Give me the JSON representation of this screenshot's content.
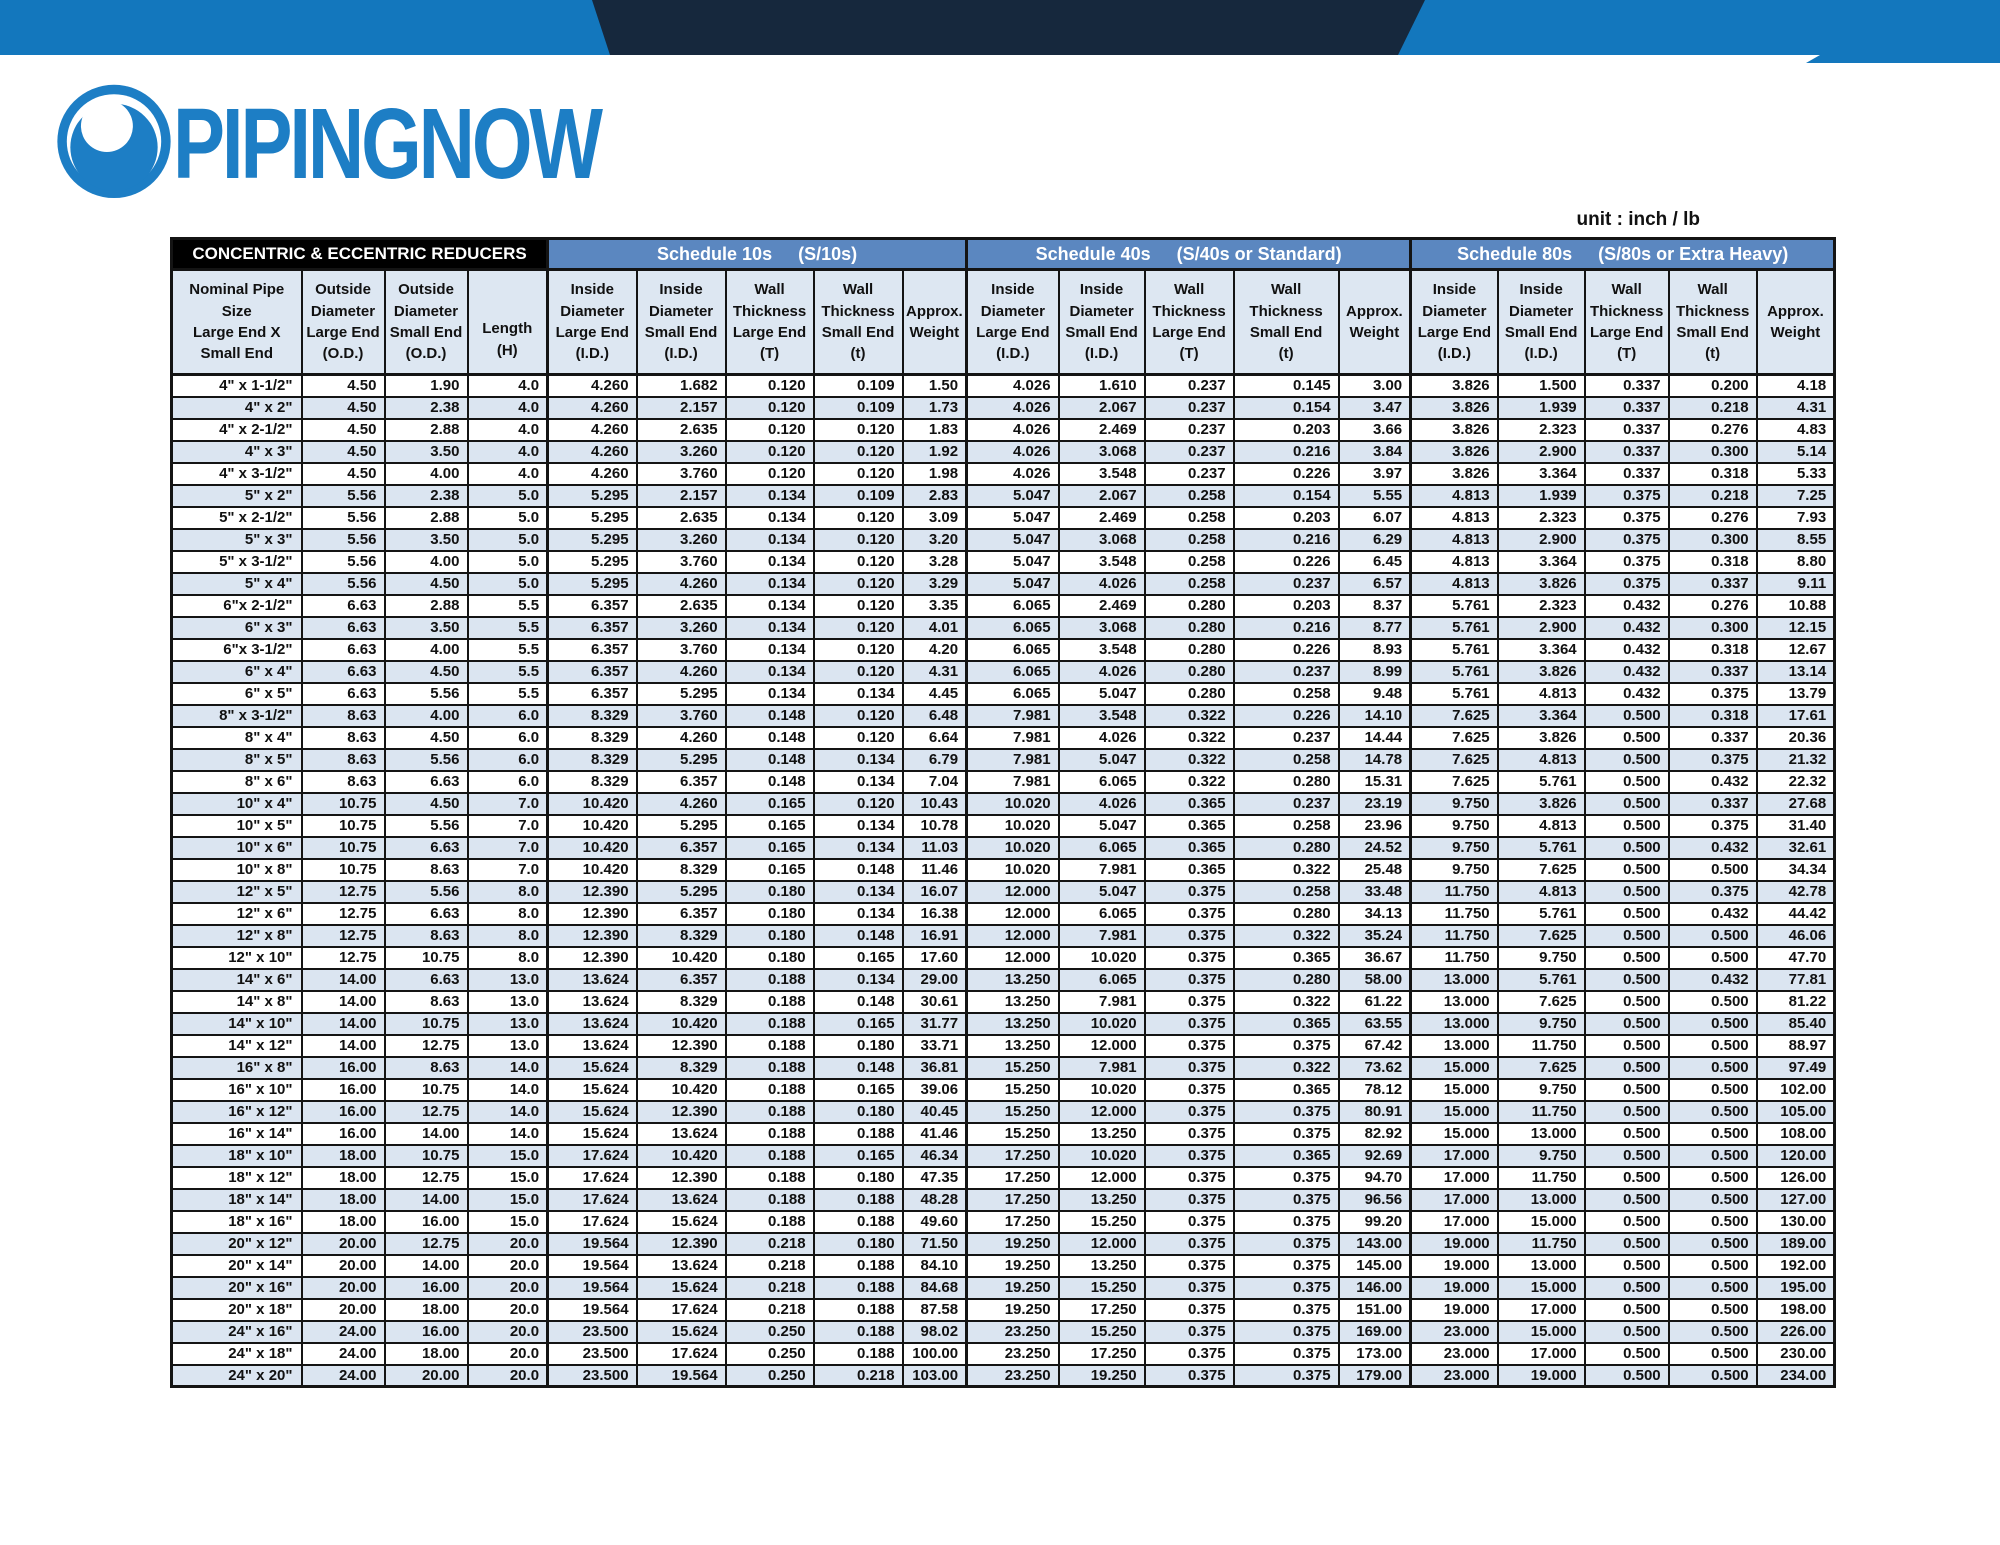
{
  "meta": {
    "unit_label": "unit : inch / lb"
  },
  "logo": {
    "text": "PIPINGNOW"
  },
  "colors": {
    "banner_blue": "#1377bd",
    "banner_navy": "#16283d",
    "logo_blue": "#1d7ec5",
    "schedule_bar_blue": "#5b87c0",
    "header_bg": "#dde7f2",
    "row_stripe": "#dbe5f1",
    "title_bg": "#000000",
    "border": "#141414"
  },
  "table": {
    "title": "CONCENTRIC & ECCENTRIC REDUCERS",
    "schedules": [
      {
        "label": "Schedule 10s",
        "sublabel": "(S/10s)"
      },
      {
        "label": "Schedule 40s",
        "sublabel": "(S/40s or Standard)"
      },
      {
        "label": "Schedule 80s",
        "sublabel": "(S/80s or Extra Heavy)"
      }
    ],
    "base_headers": [
      "Nominal Pipe\nSize\nLarge End X\nSmall End",
      "Outside\nDiameter\nLarge End\n(O.D.)",
      "Outside\nDiameter\nSmall End\n(O.D.)",
      "Length\n(H)"
    ],
    "schedule_headers": [
      "Inside\nDiameter\nLarge End\n(I.D.)",
      "Inside\nDiameter\nSmall End\n(I.D.)",
      "Wall\nThickness\nLarge End\n(T)",
      "Wall\nThickness\nSmall End\n(t)",
      "Approx.\nWeight"
    ],
    "rows": [
      [
        "4\" x 1-1/2\"",
        "4.50",
        "1.90",
        "4.0",
        "4.260",
        "1.682",
        "0.120",
        "0.109",
        "1.50",
        "4.026",
        "1.610",
        "0.237",
        "0.145",
        "3.00",
        "3.826",
        "1.500",
        "0.337",
        "0.200",
        "4.18"
      ],
      [
        "4\" x 2\"",
        "4.50",
        "2.38",
        "4.0",
        "4.260",
        "2.157",
        "0.120",
        "0.109",
        "1.73",
        "4.026",
        "2.067",
        "0.237",
        "0.154",
        "3.47",
        "3.826",
        "1.939",
        "0.337",
        "0.218",
        "4.31"
      ],
      [
        "4\" x 2-1/2\"",
        "4.50",
        "2.88",
        "4.0",
        "4.260",
        "2.635",
        "0.120",
        "0.120",
        "1.83",
        "4.026",
        "2.469",
        "0.237",
        "0.203",
        "3.66",
        "3.826",
        "2.323",
        "0.337",
        "0.276",
        "4.83"
      ],
      [
        "4\" x 3\"",
        "4.50",
        "3.50",
        "4.0",
        "4.260",
        "3.260",
        "0.120",
        "0.120",
        "1.92",
        "4.026",
        "3.068",
        "0.237",
        "0.216",
        "3.84",
        "3.826",
        "2.900",
        "0.337",
        "0.300",
        "5.14"
      ],
      [
        "4\" x 3-1/2\"",
        "4.50",
        "4.00",
        "4.0",
        "4.260",
        "3.760",
        "0.120",
        "0.120",
        "1.98",
        "4.026",
        "3.548",
        "0.237",
        "0.226",
        "3.97",
        "3.826",
        "3.364",
        "0.337",
        "0.318",
        "5.33"
      ],
      [
        "5\" x 2\"",
        "5.56",
        "2.38",
        "5.0",
        "5.295",
        "2.157",
        "0.134",
        "0.109",
        "2.83",
        "5.047",
        "2.067",
        "0.258",
        "0.154",
        "5.55",
        "4.813",
        "1.939",
        "0.375",
        "0.218",
        "7.25"
      ],
      [
        "5\" x 2-1/2\"",
        "5.56",
        "2.88",
        "5.0",
        "5.295",
        "2.635",
        "0.134",
        "0.120",
        "3.09",
        "5.047",
        "2.469",
        "0.258",
        "0.203",
        "6.07",
        "4.813",
        "2.323",
        "0.375",
        "0.276",
        "7.93"
      ],
      [
        "5\" x 3\"",
        "5.56",
        "3.50",
        "5.0",
        "5.295",
        "3.260",
        "0.134",
        "0.120",
        "3.20",
        "5.047",
        "3.068",
        "0.258",
        "0.216",
        "6.29",
        "4.813",
        "2.900",
        "0.375",
        "0.300",
        "8.55"
      ],
      [
        "5\" x 3-1/2\"",
        "5.56",
        "4.00",
        "5.0",
        "5.295",
        "3.760",
        "0.134",
        "0.120",
        "3.28",
        "5.047",
        "3.548",
        "0.258",
        "0.226",
        "6.45",
        "4.813",
        "3.364",
        "0.375",
        "0.318",
        "8.80"
      ],
      [
        "5\" x 4\"",
        "5.56",
        "4.50",
        "5.0",
        "5.295",
        "4.260",
        "0.134",
        "0.120",
        "3.29",
        "5.047",
        "4.026",
        "0.258",
        "0.237",
        "6.57",
        "4.813",
        "3.826",
        "0.375",
        "0.337",
        "9.11"
      ],
      [
        "6\"x 2-1/2\"",
        "6.63",
        "2.88",
        "5.5",
        "6.357",
        "2.635",
        "0.134",
        "0.120",
        "3.35",
        "6.065",
        "2.469",
        "0.280",
        "0.203",
        "8.37",
        "5.761",
        "2.323",
        "0.432",
        "0.276",
        "10.88"
      ],
      [
        "6\" x 3\"",
        "6.63",
        "3.50",
        "5.5",
        "6.357",
        "3.260",
        "0.134",
        "0.120",
        "4.01",
        "6.065",
        "3.068",
        "0.280",
        "0.216",
        "8.77",
        "5.761",
        "2.900",
        "0.432",
        "0.300",
        "12.15"
      ],
      [
        "6\"x 3-1/2\"",
        "6.63",
        "4.00",
        "5.5",
        "6.357",
        "3.760",
        "0.134",
        "0.120",
        "4.20",
        "6.065",
        "3.548",
        "0.280",
        "0.226",
        "8.93",
        "5.761",
        "3.364",
        "0.432",
        "0.318",
        "12.67"
      ],
      [
        "6\" x 4\"",
        "6.63",
        "4.50",
        "5.5",
        "6.357",
        "4.260",
        "0.134",
        "0.120",
        "4.31",
        "6.065",
        "4.026",
        "0.280",
        "0.237",
        "8.99",
        "5.761",
        "3.826",
        "0.432",
        "0.337",
        "13.14"
      ],
      [
        "6\" x 5\"",
        "6.63",
        "5.56",
        "5.5",
        "6.357",
        "5.295",
        "0.134",
        "0.134",
        "4.45",
        "6.065",
        "5.047",
        "0.280",
        "0.258",
        "9.48",
        "5.761",
        "4.813",
        "0.432",
        "0.375",
        "13.79"
      ],
      [
        "8\" x 3-1/2\"",
        "8.63",
        "4.00",
        "6.0",
        "8.329",
        "3.760",
        "0.148",
        "0.120",
        "6.48",
        "7.981",
        "3.548",
        "0.322",
        "0.226",
        "14.10",
        "7.625",
        "3.364",
        "0.500",
        "0.318",
        "17.61"
      ],
      [
        "8\" x 4\"",
        "8.63",
        "4.50",
        "6.0",
        "8.329",
        "4.260",
        "0.148",
        "0.120",
        "6.64",
        "7.981",
        "4.026",
        "0.322",
        "0.237",
        "14.44",
        "7.625",
        "3.826",
        "0.500",
        "0.337",
        "20.36"
      ],
      [
        "8\" x 5\"",
        "8.63",
        "5.56",
        "6.0",
        "8.329",
        "5.295",
        "0.148",
        "0.134",
        "6.79",
        "7.981",
        "5.047",
        "0.322",
        "0.258",
        "14.78",
        "7.625",
        "4.813",
        "0.500",
        "0.375",
        "21.32"
      ],
      [
        "8\" x 6\"",
        "8.63",
        "6.63",
        "6.0",
        "8.329",
        "6.357",
        "0.148",
        "0.134",
        "7.04",
        "7.981",
        "6.065",
        "0.322",
        "0.280",
        "15.31",
        "7.625",
        "5.761",
        "0.500",
        "0.432",
        "22.32"
      ],
      [
        "10\" x 4\"",
        "10.75",
        "4.50",
        "7.0",
        "10.420",
        "4.260",
        "0.165",
        "0.120",
        "10.43",
        "10.020",
        "4.026",
        "0.365",
        "0.237",
        "23.19",
        "9.750",
        "3.826",
        "0.500",
        "0.337",
        "27.68"
      ],
      [
        "10\" x 5\"",
        "10.75",
        "5.56",
        "7.0",
        "10.420",
        "5.295",
        "0.165",
        "0.134",
        "10.78",
        "10.020",
        "5.047",
        "0.365",
        "0.258",
        "23.96",
        "9.750",
        "4.813",
        "0.500",
        "0.375",
        "31.40"
      ],
      [
        "10\" x 6\"",
        "10.75",
        "6.63",
        "7.0",
        "10.420",
        "6.357",
        "0.165",
        "0.134",
        "11.03",
        "10.020",
        "6.065",
        "0.365",
        "0.280",
        "24.52",
        "9.750",
        "5.761",
        "0.500",
        "0.432",
        "32.61"
      ],
      [
        "10\" x 8\"",
        "10.75",
        "8.63",
        "7.0",
        "10.420",
        "8.329",
        "0.165",
        "0.148",
        "11.46",
        "10.020",
        "7.981",
        "0.365",
        "0.322",
        "25.48",
        "9.750",
        "7.625",
        "0.500",
        "0.500",
        "34.34"
      ],
      [
        "12\" x 5\"",
        "12.75",
        "5.56",
        "8.0",
        "12.390",
        "5.295",
        "0.180",
        "0.134",
        "16.07",
        "12.000",
        "5.047",
        "0.375",
        "0.258",
        "33.48",
        "11.750",
        "4.813",
        "0.500",
        "0.375",
        "42.78"
      ],
      [
        "12\" x 6\"",
        "12.75",
        "6.63",
        "8.0",
        "12.390",
        "6.357",
        "0.180",
        "0.134",
        "16.38",
        "12.000",
        "6.065",
        "0.375",
        "0.280",
        "34.13",
        "11.750",
        "5.761",
        "0.500",
        "0.432",
        "44.42"
      ],
      [
        "12\" x 8\"",
        "12.75",
        "8.63",
        "8.0",
        "12.390",
        "8.329",
        "0.180",
        "0.148",
        "16.91",
        "12.000",
        "7.981",
        "0.375",
        "0.322",
        "35.24",
        "11.750",
        "7.625",
        "0.500",
        "0.500",
        "46.06"
      ],
      [
        "12\" x 10\"",
        "12.75",
        "10.75",
        "8.0",
        "12.390",
        "10.420",
        "0.180",
        "0.165",
        "17.60",
        "12.000",
        "10.020",
        "0.375",
        "0.365",
        "36.67",
        "11.750",
        "9.750",
        "0.500",
        "0.500",
        "47.70"
      ],
      [
        "14\" x 6\"",
        "14.00",
        "6.63",
        "13.0",
        "13.624",
        "6.357",
        "0.188",
        "0.134",
        "29.00",
        "13.250",
        "6.065",
        "0.375",
        "0.280",
        "58.00",
        "13.000",
        "5.761",
        "0.500",
        "0.432",
        "77.81"
      ],
      [
        "14\" x 8\"",
        "14.00",
        "8.63",
        "13.0",
        "13.624",
        "8.329",
        "0.188",
        "0.148",
        "30.61",
        "13.250",
        "7.981",
        "0.375",
        "0.322",
        "61.22",
        "13.000",
        "7.625",
        "0.500",
        "0.500",
        "81.22"
      ],
      [
        "14\" x 10\"",
        "14.00",
        "10.75",
        "13.0",
        "13.624",
        "10.420",
        "0.188",
        "0.165",
        "31.77",
        "13.250",
        "10.020",
        "0.375",
        "0.365",
        "63.55",
        "13.000",
        "9.750",
        "0.500",
        "0.500",
        "85.40"
      ],
      [
        "14\" x 12\"",
        "14.00",
        "12.75",
        "13.0",
        "13.624",
        "12.390",
        "0.188",
        "0.180",
        "33.71",
        "13.250",
        "12.000",
        "0.375",
        "0.375",
        "67.42",
        "13.000",
        "11.750",
        "0.500",
        "0.500",
        "88.97"
      ],
      [
        "16\" x 8\"",
        "16.00",
        "8.63",
        "14.0",
        "15.624",
        "8.329",
        "0.188",
        "0.148",
        "36.81",
        "15.250",
        "7.981",
        "0.375",
        "0.322",
        "73.62",
        "15.000",
        "7.625",
        "0.500",
        "0.500",
        "97.49"
      ],
      [
        "16\" x 10\"",
        "16.00",
        "10.75",
        "14.0",
        "15.624",
        "10.420",
        "0.188",
        "0.165",
        "39.06",
        "15.250",
        "10.020",
        "0.375",
        "0.365",
        "78.12",
        "15.000",
        "9.750",
        "0.500",
        "0.500",
        "102.00"
      ],
      [
        "16\" x 12\"",
        "16.00",
        "12.75",
        "14.0",
        "15.624",
        "12.390",
        "0.188",
        "0.180",
        "40.45",
        "15.250",
        "12.000",
        "0.375",
        "0.375",
        "80.91",
        "15.000",
        "11.750",
        "0.500",
        "0.500",
        "105.00"
      ],
      [
        "16\" x 14\"",
        "16.00",
        "14.00",
        "14.0",
        "15.624",
        "13.624",
        "0.188",
        "0.188",
        "41.46",
        "15.250",
        "13.250",
        "0.375",
        "0.375",
        "82.92",
        "15.000",
        "13.000",
        "0.500",
        "0.500",
        "108.00"
      ],
      [
        "18\" x 10\"",
        "18.00",
        "10.75",
        "15.0",
        "17.624",
        "10.420",
        "0.188",
        "0.165",
        "46.34",
        "17.250",
        "10.020",
        "0.375",
        "0.365",
        "92.69",
        "17.000",
        "9.750",
        "0.500",
        "0.500",
        "120.00"
      ],
      [
        "18\" x 12\"",
        "18.00",
        "12.75",
        "15.0",
        "17.624",
        "12.390",
        "0.188",
        "0.180",
        "47.35",
        "17.250",
        "12.000",
        "0.375",
        "0.375",
        "94.70",
        "17.000",
        "11.750",
        "0.500",
        "0.500",
        "126.00"
      ],
      [
        "18\" x 14\"",
        "18.00",
        "14.00",
        "15.0",
        "17.624",
        "13.624",
        "0.188",
        "0.188",
        "48.28",
        "17.250",
        "13.250",
        "0.375",
        "0.375",
        "96.56",
        "17.000",
        "13.000",
        "0.500",
        "0.500",
        "127.00"
      ],
      [
        "18\" x 16\"",
        "18.00",
        "16.00",
        "15.0",
        "17.624",
        "15.624",
        "0.188",
        "0.188",
        "49.60",
        "17.250",
        "15.250",
        "0.375",
        "0.375",
        "99.20",
        "17.000",
        "15.000",
        "0.500",
        "0.500",
        "130.00"
      ],
      [
        "20\" x 12\"",
        "20.00",
        "12.75",
        "20.0",
        "19.564",
        "12.390",
        "0.218",
        "0.180",
        "71.50",
        "19.250",
        "12.000",
        "0.375",
        "0.375",
        "143.00",
        "19.000",
        "11.750",
        "0.500",
        "0.500",
        "189.00"
      ],
      [
        "20\" x 14\"",
        "20.00",
        "14.00",
        "20.0",
        "19.564",
        "13.624",
        "0.218",
        "0.188",
        "84.10",
        "19.250",
        "13.250",
        "0.375",
        "0.375",
        "145.00",
        "19.000",
        "13.000",
        "0.500",
        "0.500",
        "192.00"
      ],
      [
        "20\" x 16\"",
        "20.00",
        "16.00",
        "20.0",
        "19.564",
        "15.624",
        "0.218",
        "0.188",
        "84.68",
        "19.250",
        "15.250",
        "0.375",
        "0.375",
        "146.00",
        "19.000",
        "15.000",
        "0.500",
        "0.500",
        "195.00"
      ],
      [
        "20\" x 18\"",
        "20.00",
        "18.00",
        "20.0",
        "19.564",
        "17.624",
        "0.218",
        "0.188",
        "87.58",
        "19.250",
        "17.250",
        "0.375",
        "0.375",
        "151.00",
        "19.000",
        "17.000",
        "0.500",
        "0.500",
        "198.00"
      ],
      [
        "24\" x 16\"",
        "24.00",
        "16.00",
        "20.0",
        "23.500",
        "15.624",
        "0.250",
        "0.188",
        "98.02",
        "23.250",
        "15.250",
        "0.375",
        "0.375",
        "169.00",
        "23.000",
        "15.000",
        "0.500",
        "0.500",
        "226.00"
      ],
      [
        "24\" x 18\"",
        "24.00",
        "18.00",
        "20.0",
        "23.500",
        "17.624",
        "0.250",
        "0.188",
        "100.00",
        "23.250",
        "17.250",
        "0.375",
        "0.375",
        "173.00",
        "23.000",
        "17.000",
        "0.500",
        "0.500",
        "230.00"
      ],
      [
        "24\" x 20\"",
        "24.00",
        "20.00",
        "20.0",
        "23.500",
        "19.564",
        "0.250",
        "0.218",
        "103.00",
        "23.250",
        "19.250",
        "0.375",
        "0.375",
        "179.00",
        "23.000",
        "19.000",
        "0.500",
        "0.500",
        "234.00"
      ]
    ]
  }
}
